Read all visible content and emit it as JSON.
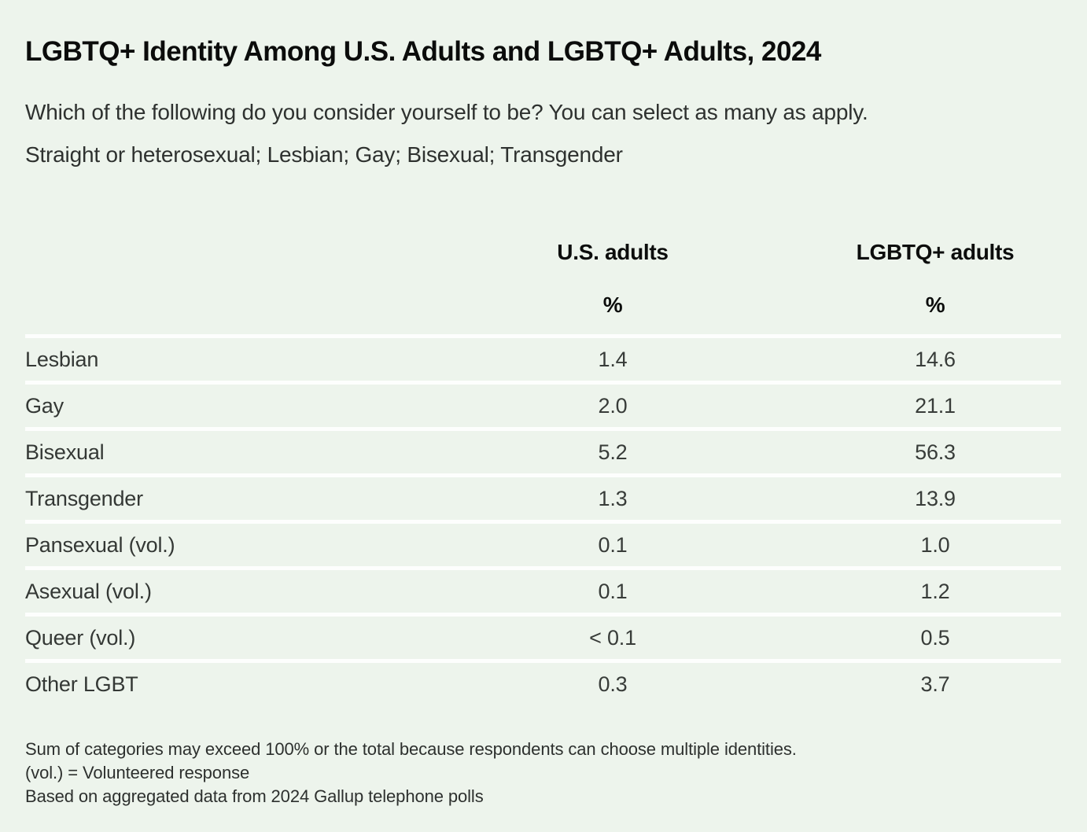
{
  "theme": {
    "background": "#edf4ec",
    "divider_color": "#fdfefd",
    "title_color": "#0b0c0b",
    "text_color": "#333734"
  },
  "chart_data": {
    "type": "table",
    "title": "LGBTQ+ Identity Among U.S. Adults and LGBTQ+ Adults, 2024",
    "subtitle": [
      "Which of the following do you consider yourself to be? You can select as many as apply.",
      "Straight or heterosexual; Lesbian; Gay; Bisexual; Transgender"
    ],
    "columns": [
      "U.S. adults",
      "LGBTQ+ adults"
    ],
    "unit_row": [
      "%",
      "%"
    ],
    "rows": [
      {
        "label": "Lesbian",
        "us_adults": "1.4",
        "lgbtq_adults": "14.6"
      },
      {
        "label": "Gay",
        "us_adults": "2.0",
        "lgbtq_adults": "21.1"
      },
      {
        "label": "Bisexual",
        "us_adults": "5.2",
        "lgbtq_adults": "56.3"
      },
      {
        "label": "Transgender",
        "us_adults": "1.3",
        "lgbtq_adults": "13.9"
      },
      {
        "label": "Pansexual (vol.)",
        "us_adults": "0.1",
        "lgbtq_adults": "1.0"
      },
      {
        "label": "Asexual (vol.)",
        "us_adults": "0.1",
        "lgbtq_adults": "1.2"
      },
      {
        "label": "Queer (vol.)",
        "us_adults": "< 0.1",
        "lgbtq_adults": "0.5"
      },
      {
        "label": "Other LGBT",
        "us_adults": "0.3",
        "lgbtq_adults": "3.7"
      }
    ],
    "notes": [
      "Sum of categories may exceed 100% or the total because respondents can choose multiple identities.",
      "(vol.) = Volunteered response",
      "Based on aggregated data from 2024 Gallup telephone polls"
    ]
  }
}
